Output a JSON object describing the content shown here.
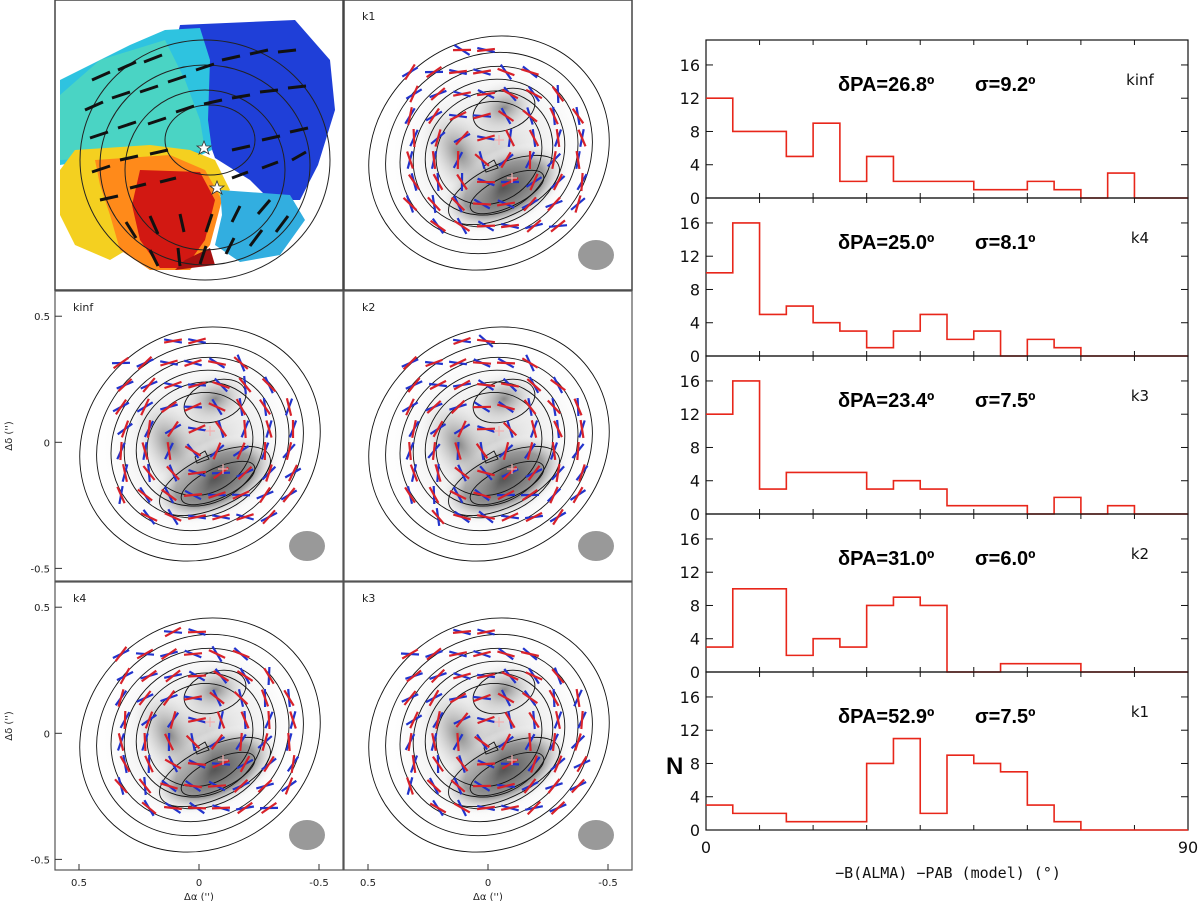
{
  "chart_data": [
    {
      "type": "image_panels",
      "description_labels": {
        "panels": [
          "velocity map",
          "k1",
          "kinf",
          "k2",
          "k4",
          "k3"
        ]
      },
      "x_axis": {
        "label": "Δα ('')",
        "ticks": [
          "0.5",
          "0",
          "-0.5"
        ],
        "range": [
          0.6,
          -0.6
        ]
      },
      "y_axis": {
        "label": "Δδ ('')",
        "ticks": [
          "0.5",
          "0",
          "-0.5"
        ],
        "range": [
          -0.55,
          0.6
        ]
      },
      "panels": [
        {
          "key": "k1",
          "label": "k1"
        },
        {
          "key": "kinf",
          "label": "kinf"
        },
        {
          "key": "k2",
          "label": "k2"
        },
        {
          "key": "k4",
          "label": "k4"
        },
        {
          "key": "k3",
          "label": "k3"
        }
      ]
    },
    {
      "type": "bar",
      "subtype": "step_histogram",
      "xlabel": "−B(ALMA) −PAB (model) (°)",
      "ylabel": "N",
      "xlim": [
        0,
        90
      ],
      "ylim": [
        0,
        19
      ],
      "xticks": [
        0,
        90
      ],
      "yticks": [
        0,
        4,
        8,
        12,
        16
      ],
      "bin_edges": [
        0,
        5,
        10,
        15,
        20,
        25,
        30,
        35,
        40,
        45,
        50,
        55,
        60,
        65,
        70,
        75,
        80,
        85,
        90
      ],
      "color": "#e8261a",
      "series": [
        {
          "name": "kinf",
          "delta_pa": "δPA=26.8º",
          "sigma": "σ=9.2º",
          "counts": [
            12,
            8,
            8,
            5,
            9,
            2,
            5,
            2,
            2,
            2,
            1,
            1,
            2,
            1,
            0,
            3,
            0,
            0
          ]
        },
        {
          "name": "k4",
          "delta_pa": "δPA=25.0º",
          "sigma": "σ=8.1º",
          "counts": [
            10,
            16,
            5,
            6,
            4,
            3,
            1,
            3,
            5,
            2,
            3,
            0,
            2,
            1,
            0,
            0,
            0,
            0
          ]
        },
        {
          "name": "k3",
          "delta_pa": "δPA=23.4º",
          "sigma": "σ=7.5º",
          "counts": [
            12,
            16,
            3,
            5,
            5,
            5,
            3,
            4,
            3,
            1,
            1,
            1,
            0,
            2,
            0,
            1,
            0,
            0
          ]
        },
        {
          "name": "k2",
          "delta_pa": "δPA=31.0º",
          "sigma": "σ=6.0º",
          "counts": [
            3,
            10,
            10,
            2,
            4,
            3,
            8,
            9,
            8,
            0,
            0,
            1,
            1,
            1,
            0,
            0,
            0,
            0
          ]
        },
        {
          "name": "k1",
          "delta_pa": "δPA=52.9º",
          "sigma": "σ=7.5º",
          "counts": [
            3,
            2,
            2,
            1,
            1,
            1,
            8,
            11,
            2,
            9,
            8,
            7,
            3,
            1,
            0,
            0,
            0,
            0
          ]
        }
      ]
    }
  ]
}
